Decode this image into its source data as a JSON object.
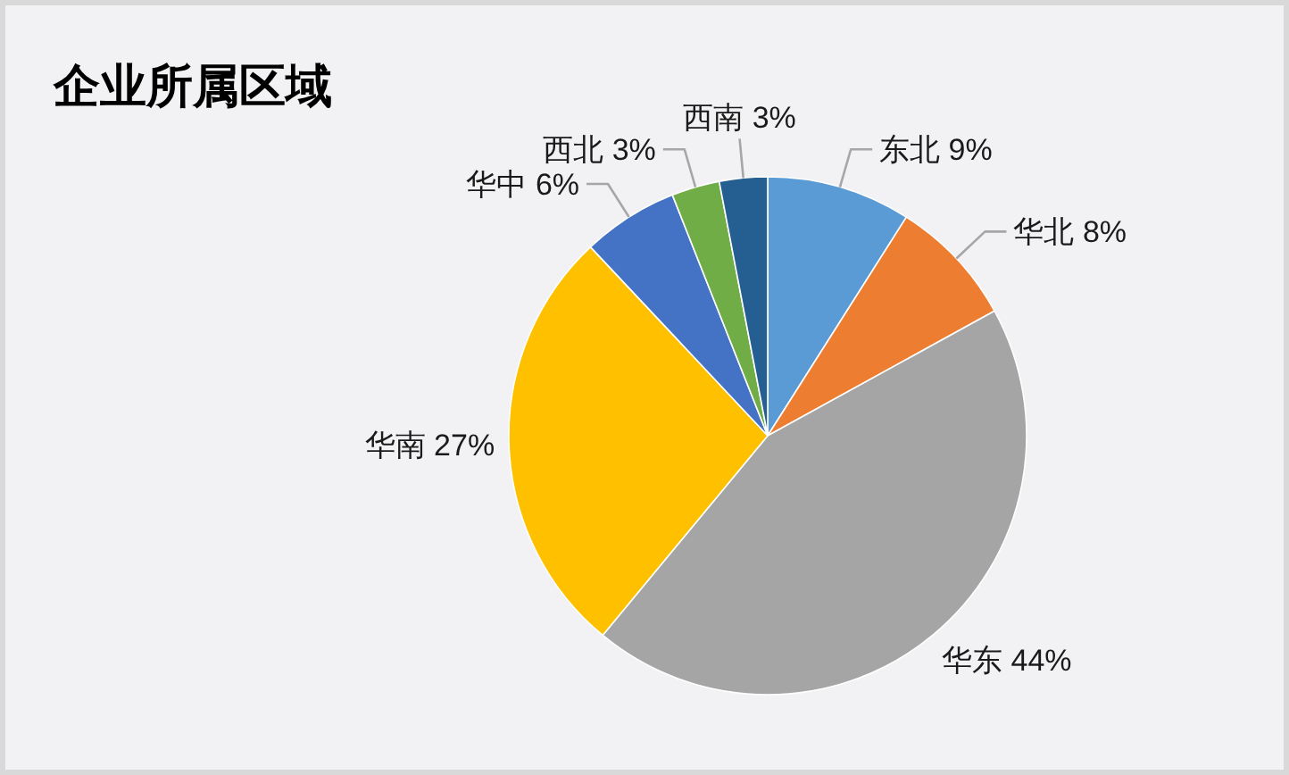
{
  "chart_data": {
    "type": "pie",
    "title": "企业所属区域",
    "categories": [
      "东北",
      "华北",
      "华东",
      "华南",
      "华中",
      "西北",
      "西南"
    ],
    "values": [
      9,
      8,
      44,
      27,
      6,
      3,
      3
    ],
    "value_labels": [
      "9%",
      "8%",
      "44%",
      "27%",
      "6%",
      "3%",
      "3%"
    ],
    "colors": [
      "#5b9bd5",
      "#ed7d31",
      "#a5a5a5",
      "#ffc000",
      "#4472c4",
      "#70ad47",
      "#255e91"
    ]
  }
}
